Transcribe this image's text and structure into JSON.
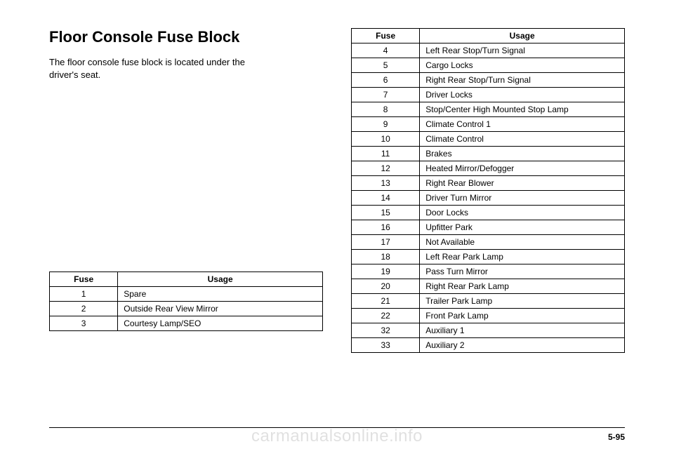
{
  "title": "Floor Console Fuse Block",
  "description_l1": "The floor console fuse block is located under the",
  "description_l2": "driver's seat.",
  "headers": {
    "fuse": "Fuse",
    "usage": "Usage"
  },
  "left_rows": [
    {
      "n": "1",
      "u": "Spare"
    },
    {
      "n": "2",
      "u": "Outside Rear View Mirror"
    },
    {
      "n": "3",
      "u": "Courtesy Lamp/SEO"
    }
  ],
  "right_rows": [
    {
      "n": "4",
      "u": "Left Rear Stop/Turn Signal"
    },
    {
      "n": "5",
      "u": "Cargo Locks"
    },
    {
      "n": "6",
      "u": "Right Rear Stop/Turn Signal"
    },
    {
      "n": "7",
      "u": "Driver Locks"
    },
    {
      "n": "8",
      "u": "Stop/Center High Mounted Stop Lamp"
    },
    {
      "n": "9",
      "u": "Climate Control 1"
    },
    {
      "n": "10",
      "u": "Climate Control"
    },
    {
      "n": "11",
      "u": "Brakes"
    },
    {
      "n": "12",
      "u": "Heated Mirror/Defogger"
    },
    {
      "n": "13",
      "u": "Right Rear Blower"
    },
    {
      "n": "14",
      "u": "Driver Turn Mirror"
    },
    {
      "n": "15",
      "u": "Door Locks"
    },
    {
      "n": "16",
      "u": "Upfitter Park"
    },
    {
      "n": "17",
      "u": "Not Available"
    },
    {
      "n": "18",
      "u": "Left Rear Park Lamp"
    },
    {
      "n": "19",
      "u": "Pass Turn Mirror"
    },
    {
      "n": "20",
      "u": "Right Rear Park Lamp"
    },
    {
      "n": "21",
      "u": "Trailer Park Lamp"
    },
    {
      "n": "22",
      "u": "Front Park Lamp"
    },
    {
      "n": "32",
      "u": "Auxiliary 1"
    },
    {
      "n": "33",
      "u": "Auxiliary 2"
    }
  ],
  "page_number": "5-95",
  "watermark": "carmanualsonline.info"
}
